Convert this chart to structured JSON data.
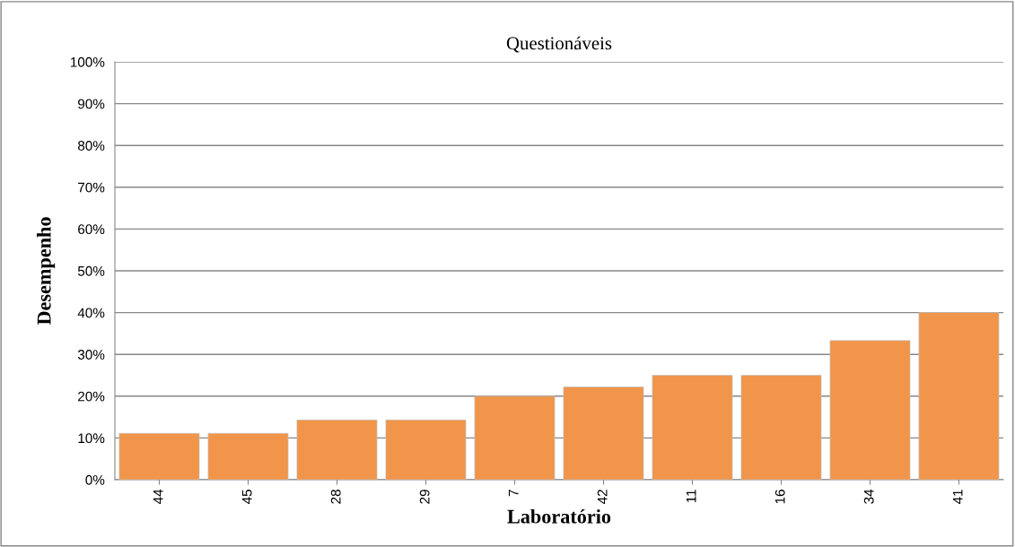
{
  "chart_data": {
    "type": "bar",
    "title": "Questionáveis",
    "xlabel": "Laboratório",
    "ylabel": "Desempenho",
    "categories": [
      "44",
      "45",
      "28",
      "29",
      "7",
      "42",
      "11",
      "16",
      "34",
      "41"
    ],
    "values": [
      11.1,
      11.1,
      14.3,
      14.3,
      20,
      22.2,
      25,
      25,
      33.3,
      40
    ],
    "color": "#f0954a",
    "ylim": [
      0,
      100
    ],
    "yticks": [
      {
        "value": 0,
        "label": "0%"
      },
      {
        "value": 10,
        "label": "10%"
      },
      {
        "value": 20,
        "label": "20%"
      },
      {
        "value": 30,
        "label": "30%"
      },
      {
        "value": 40,
        "label": "40%"
      },
      {
        "value": 50,
        "label": "50%"
      },
      {
        "value": 60,
        "label": "60%"
      },
      {
        "value": 70,
        "label": "70%"
      },
      {
        "value": 80,
        "label": "80%"
      },
      {
        "value": 90,
        "label": "90%"
      },
      {
        "value": 100,
        "label": "100%"
      }
    ],
    "grid": "y",
    "legend": false
  }
}
